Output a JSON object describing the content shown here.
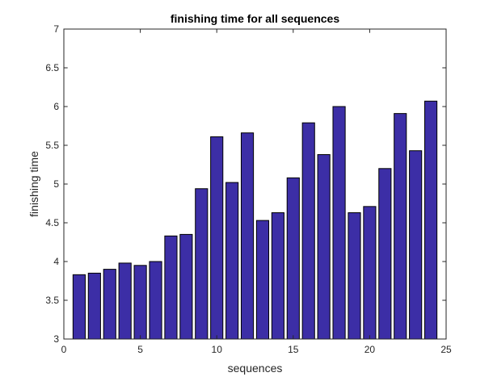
{
  "chart_data": {
    "type": "bar",
    "title": "finishing time for all sequences",
    "xlabel": "sequences",
    "ylabel": "finishing time",
    "xlim": [
      0,
      25
    ],
    "ylim": [
      3,
      7
    ],
    "xticks": [
      0,
      5,
      10,
      15,
      20,
      25
    ],
    "yticks": [
      3,
      3.5,
      4,
      4.5,
      5,
      5.5,
      6,
      6.5,
      7
    ],
    "x": [
      1,
      2,
      3,
      4,
      5,
      6,
      7,
      8,
      9,
      10,
      11,
      12,
      13,
      14,
      15,
      16,
      17,
      18,
      19,
      20,
      21,
      22,
      23,
      24
    ],
    "values": [
      3.83,
      3.85,
      3.9,
      3.98,
      3.95,
      4.0,
      4.33,
      4.35,
      4.94,
      5.61,
      5.02,
      5.66,
      4.53,
      4.63,
      5.08,
      5.79,
      5.38,
      6.0,
      4.63,
      4.71,
      5.2,
      5.91,
      5.43,
      6.07
    ],
    "grid": false,
    "legend": "none",
    "bar_color": "#3C2EA6",
    "bar_edge_color": "#000000"
  }
}
